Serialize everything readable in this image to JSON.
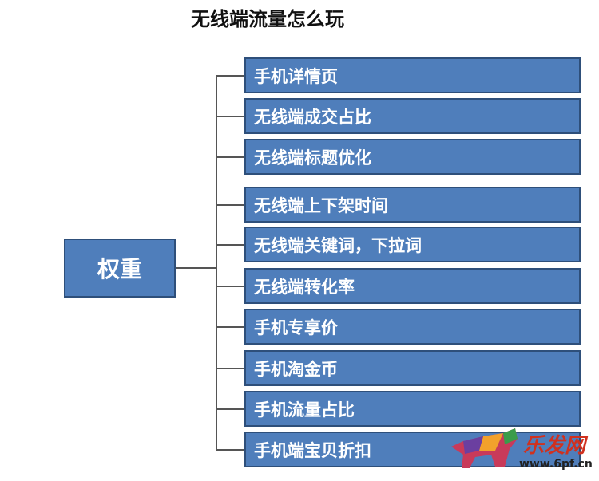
{
  "title": "无线端流量怎么玩",
  "root": "权重",
  "items": [
    "手机详情页",
    "无线端成交占比",
    "无线端标题优化",
    "无线端上下架时间",
    "无线端关键词，下拉词",
    "无线端转化率",
    "手机专享价",
    "手机淘金币",
    "手机流量占比",
    "手机端宝贝折扣"
  ],
  "watermark": {
    "text": "乐发网",
    "url": "www.6pf.cn"
  },
  "colors": {
    "box": "#4f7ebb",
    "border": "#2e4f7a"
  }
}
